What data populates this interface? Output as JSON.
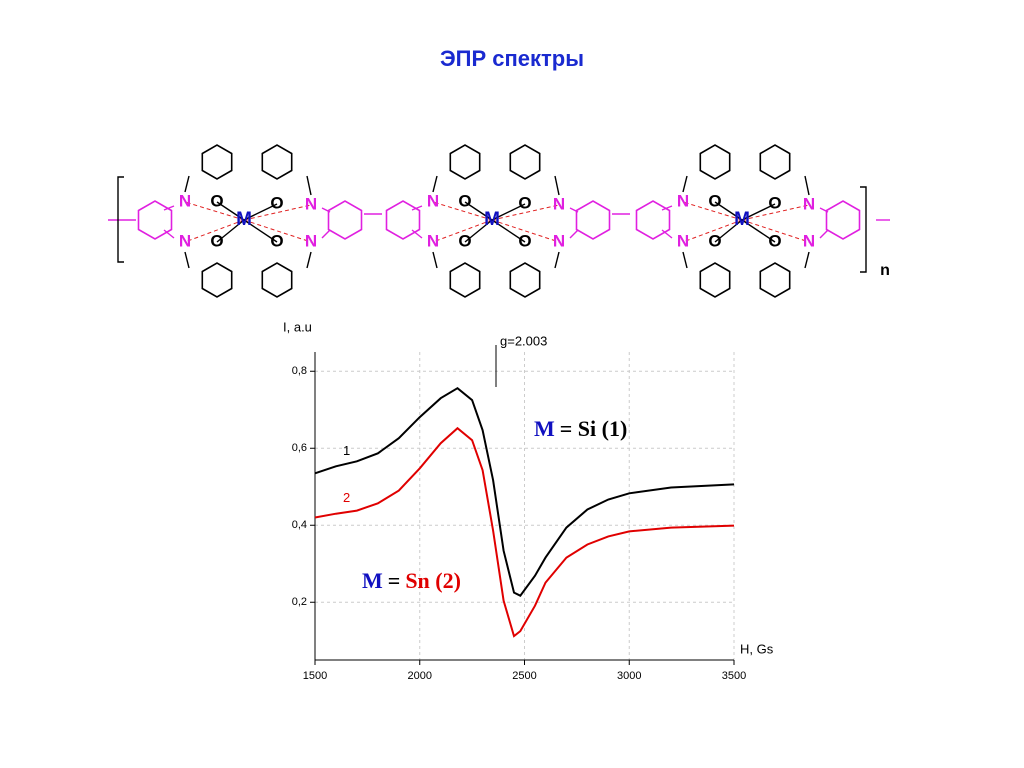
{
  "title": "ЭПР спектры",
  "structure": {
    "metal": "M",
    "nitrogen": "N",
    "oxygen": "O",
    "repeat": "n"
  },
  "chart_data": {
    "type": "line",
    "x_label": "H, Gs",
    "y_label": "I, a.u",
    "x": [
      1500,
      1600,
      1700,
      1800,
      1900,
      2000,
      2100,
      2180,
      2250,
      2300,
      2350,
      2400,
      2450,
      2480,
      2550,
      2600,
      2700,
      2800,
      2900,
      3000,
      3200,
      3500
    ],
    "series": [
      {
        "name": "1",
        "color": "#000000",
        "values": [
          0.535,
          0.553,
          0.566,
          0.587,
          0.626,
          0.681,
          0.73,
          0.756,
          0.725,
          0.647,
          0.517,
          0.334,
          0.225,
          0.217,
          0.269,
          0.316,
          0.394,
          0.441,
          0.467,
          0.483,
          0.498,
          0.506
        ]
      },
      {
        "name": "2",
        "color": "#e00000",
        "values": [
          0.42,
          0.43,
          0.438,
          0.457,
          0.49,
          0.548,
          0.613,
          0.652,
          0.621,
          0.543,
          0.386,
          0.204,
          0.112,
          0.125,
          0.191,
          0.251,
          0.316,
          0.35,
          0.371,
          0.384,
          0.394,
          0.399
        ]
      }
    ],
    "xlim": [
      1500,
      3500
    ],
    "xticks": [
      1500,
      2000,
      2500,
      3000,
      3500
    ],
    "ylim": [
      0.05,
      0.85
    ],
    "yticks": [
      {
        "value": 0.2,
        "label": "0,2"
      },
      {
        "value": 0.4,
        "label": "0,4"
      },
      {
        "value": 0.6,
        "label": "0,6"
      },
      {
        "value": 0.8,
        "label": "0,8"
      }
    ],
    "grid": true,
    "marker": {
      "x": 2364,
      "label": "g=2.003"
    },
    "annotations": [
      {
        "parts": [
          {
            "text": "M",
            "color": "#1010c0"
          },
          {
            "text": "= Si (1)",
            "color": "#000000"
          }
        ]
      },
      {
        "parts": [
          {
            "text": "M",
            "color": "#1010c0"
          },
          {
            "text": "=",
            "color": "#000000"
          },
          {
            "text": "Sn (2)",
            "color": "#e00000"
          }
        ]
      }
    ]
  }
}
